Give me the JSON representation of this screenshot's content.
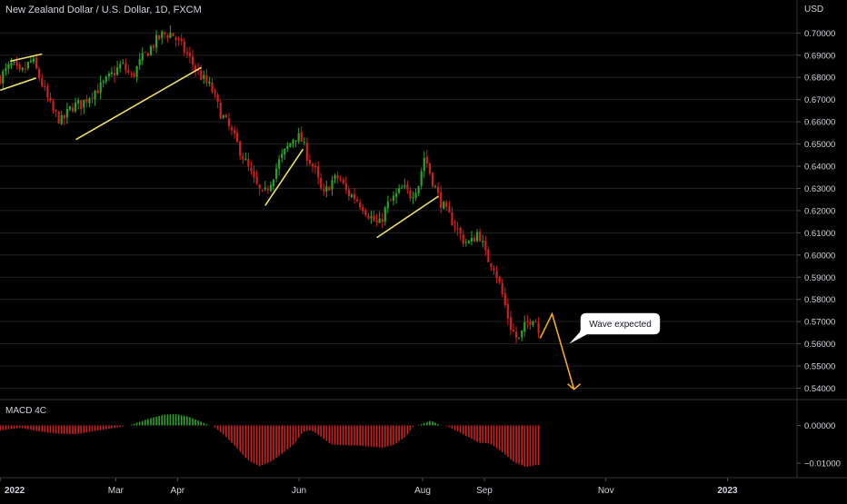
{
  "header": {
    "symbol_title": "New Zealand Dollar / U.S. Dollar, 1D, FXCM",
    "currency": "USD"
  },
  "colors": {
    "up": "#26a626",
    "down": "#d21e1e",
    "trendline": "#f0e060",
    "projection": "#f5a623",
    "axis_text": "#d1d4dc",
    "background": "#000000",
    "grid": "#222222"
  },
  "annotation": {
    "text": "Wave expected"
  },
  "macd": {
    "title": "MACD 4C",
    "ticks": [
      "0.00000",
      "−0.01000"
    ]
  },
  "chart_data": [
    {
      "type": "candlestick",
      "title": "New Zealand Dollar / U.S. Dollar, 1D, FXCM",
      "ylabel": "USD",
      "ylim": [
        0.537,
        0.707
      ],
      "yticks": [
        "0.54000",
        "0.55000",
        "0.56000",
        "0.57000",
        "0.58000",
        "0.59000",
        "0.60000",
        "0.61000",
        "0.62000",
        "0.63000",
        "0.64000",
        "0.65000",
        "0.66000",
        "0.67000",
        "0.68000",
        "0.69000",
        "0.70000"
      ],
      "xticks": [
        {
          "label": "2022",
          "day": 0
        },
        {
          "label": "Mar",
          "day": 58
        },
        {
          "label": "Apr",
          "day": 89
        },
        {
          "label": "Jun",
          "day": 150
        },
        {
          "label": "Aug",
          "day": 212
        },
        {
          "label": "Sep",
          "day": 243
        },
        {
          "label": "Nov",
          "day": 304
        },
        {
          "label": "2023",
          "day": 365
        }
      ],
      "price_path": [
        [
          0,
          0.68
        ],
        [
          6,
          0.686
        ],
        [
          10,
          0.681
        ],
        [
          16,
          0.688
        ],
        [
          21,
          0.677
        ],
        [
          26,
          0.665
        ],
        [
          31,
          0.66
        ],
        [
          36,
          0.667
        ],
        [
          41,
          0.668
        ],
        [
          46,
          0.673
        ],
        [
          51,
          0.676
        ],
        [
          56,
          0.681
        ],
        [
          61,
          0.686
        ],
        [
          66,
          0.68
        ],
        [
          71,
          0.688
        ],
        [
          76,
          0.694
        ],
        [
          81,
          0.699
        ],
        [
          86,
          0.7
        ],
        [
          90,
          0.695
        ],
        [
          94,
          0.69
        ],
        [
          98,
          0.684
        ],
        [
          102,
          0.679
        ],
        [
          106,
          0.675
        ],
        [
          110,
          0.665
        ],
        [
          115,
          0.657
        ],
        [
          120,
          0.648
        ],
        [
          124,
          0.64
        ],
        [
          128,
          0.632
        ],
        [
          132,
          0.626
        ],
        [
          136,
          0.634
        ],
        [
          140,
          0.642
        ],
        [
          144,
          0.648
        ],
        [
          148,
          0.654
        ],
        [
          151,
          0.652
        ],
        [
          154,
          0.645
        ],
        [
          158,
          0.638
        ],
        [
          162,
          0.626
        ],
        [
          166,
          0.633
        ],
        [
          170,
          0.635
        ],
        [
          174,
          0.628
        ],
        [
          178,
          0.626
        ],
        [
          182,
          0.622
        ],
        [
          186,
          0.617
        ],
        [
          190,
          0.613
        ],
        [
          194,
          0.622
        ],
        [
          198,
          0.626
        ],
        [
          202,
          0.63
        ],
        [
          206,
          0.627
        ],
        [
          210,
          0.632
        ],
        [
          213,
          0.645
        ],
        [
          216,
          0.636
        ],
        [
          220,
          0.626
        ],
        [
          224,
          0.619
        ],
        [
          228,
          0.614
        ],
        [
          232,
          0.607
        ],
        [
          236,
          0.605
        ],
        [
          240,
          0.611
        ],
        [
          244,
          0.599
        ],
        [
          248,
          0.595
        ],
        [
          252,
          0.582
        ],
        [
          256,
          0.568
        ],
        [
          260,
          0.561
        ],
        [
          264,
          0.569
        ],
        [
          268,
          0.573
        ],
        [
          271,
          0.563
        ]
      ],
      "projection": [
        {
          "day": 271,
          "price": 0.5625
        },
        {
          "day": 277,
          "price": 0.5735
        },
        {
          "day": 288,
          "price": 0.5395
        }
      ],
      "trendlines": [
        {
          "start": {
            "day": 0,
            "price": 0.6742
          },
          "end": {
            "day": 18,
            "price": 0.6797
          }
        },
        {
          "start": {
            "day": 5,
            "price": 0.6873
          },
          "end": {
            "day": 21,
            "price": 0.6905
          }
        },
        {
          "start": {
            "day": 38,
            "price": 0.652
          },
          "end": {
            "day": 101,
            "price": 0.6845
          }
        },
        {
          "start": {
            "day": 133,
            "price": 0.6223
          },
          "end": {
            "day": 152,
            "price": 0.6477
          }
        },
        {
          "start": {
            "day": 189,
            "price": 0.6078
          },
          "end": {
            "day": 220,
            "price": 0.6265
          }
        }
      ]
    },
    {
      "type": "bar",
      "title": "MACD 4C",
      "ylim": [
        -0.0127,
        0.0057
      ],
      "zero": 0.0,
      "series": [
        {
          "path": [
            [
              0,
              -0.0015
            ],
            [
              10,
              -0.0008
            ],
            [
              20,
              -0.0018
            ],
            [
              28,
              -0.0023
            ],
            [
              38,
              -0.0025
            ],
            [
              48,
              -0.0016
            ],
            [
              55,
              -0.001
            ],
            [
              62,
              -0.0004
            ],
            [
              68,
              0.0008
            ],
            [
              76,
              0.0022
            ],
            [
              82,
              0.003
            ],
            [
              88,
              0.0032
            ],
            [
              94,
              0.0026
            ],
            [
              100,
              0.0014
            ],
            [
              106,
              0.0
            ],
            [
              112,
              -0.0026
            ],
            [
              118,
              -0.0058
            ],
            [
              124,
              -0.0093
            ],
            [
              130,
              -0.011
            ],
            [
              136,
              -0.0098
            ],
            [
              142,
              -0.0075
            ],
            [
              148,
              -0.005
            ],
            [
              152,
              -0.0018
            ],
            [
              156,
              -0.0014
            ],
            [
              160,
              -0.0028
            ],
            [
              166,
              -0.0052
            ],
            [
              172,
              -0.0054
            ],
            [
              180,
              -0.0055
            ],
            [
              186,
              -0.0058
            ],
            [
              192,
              -0.0061
            ],
            [
              198,
              -0.0052
            ],
            [
              204,
              -0.003
            ],
            [
              208,
              0.0
            ],
            [
              212,
              0.0006
            ],
            [
              216,
              0.0015
            ],
            [
              220,
              0.0005
            ],
            [
              226,
              -0.0008
            ],
            [
              234,
              -0.003
            ],
            [
              240,
              -0.0047
            ],
            [
              246,
              -0.005
            ],
            [
              252,
              -0.0073
            ],
            [
              258,
              -0.01
            ],
            [
              264,
              -0.0112
            ],
            [
              271,
              -0.0105
            ]
          ]
        }
      ]
    }
  ]
}
